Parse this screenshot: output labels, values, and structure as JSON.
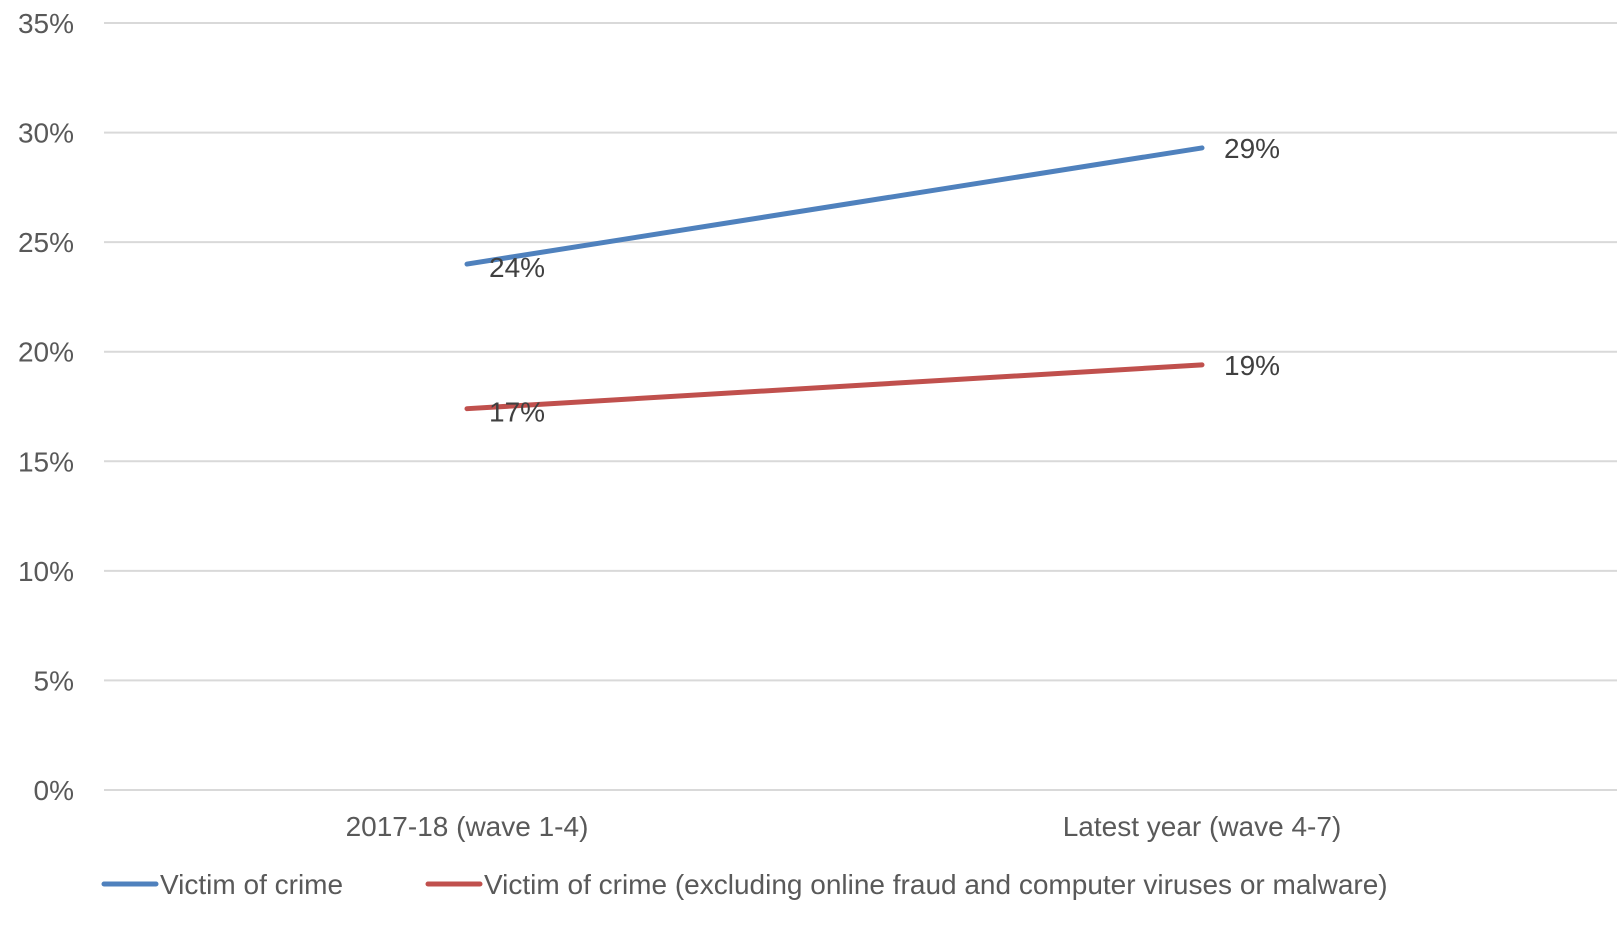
{
  "chart_data": {
    "type": "line",
    "title": "",
    "xlabel": "",
    "ylabel": "",
    "categories": [
      "2017-18 (wave 1-4)",
      "Latest year (wave 4-7)"
    ],
    "ylim": [
      0,
      35
    ],
    "y_ticks": [
      0,
      5,
      10,
      15,
      20,
      25,
      30,
      35
    ],
    "y_tick_labels": [
      "0%",
      "5%",
      "10%",
      "15%",
      "20%",
      "25%",
      "30%",
      "35%"
    ],
    "grid": true,
    "legend_position": "bottom",
    "series": [
      {
        "name": "Victim of crime",
        "values": [
          24,
          29.3
        ],
        "labels": [
          "24%",
          "29%"
        ],
        "color": "#4F81BD"
      },
      {
        "name": "Victim of crime (excluding online fraud and computer viruses or malware)",
        "values": [
          17.4,
          19.4
        ],
        "labels": [
          "17%",
          "19%"
        ],
        "color": "#C0504D"
      }
    ]
  }
}
